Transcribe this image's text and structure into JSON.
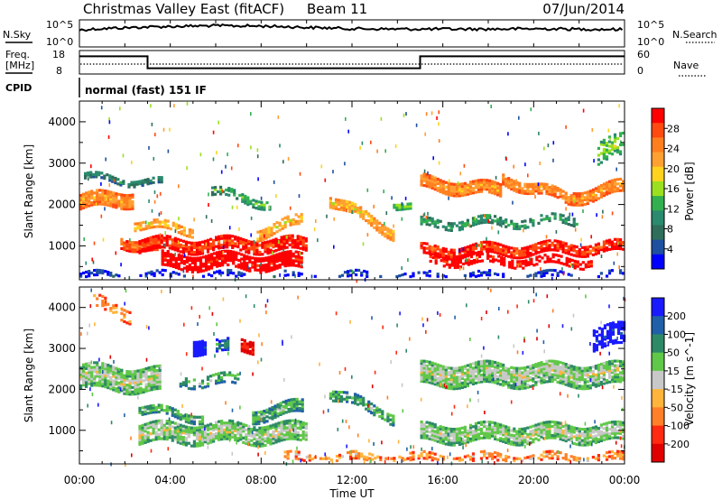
{
  "header": {
    "title": "Christmas Valley East (fitACF)",
    "beam": "Beam 11",
    "date": "07/Jun/2014"
  },
  "panels": {
    "nsky": {
      "label": "N.Sky",
      "ticks_left": [
        "10^5",
        "10^0"
      ],
      "ticks_right": [
        "10^5",
        "10^0"
      ],
      "right_label": "N.Search"
    },
    "freq": {
      "label_line1": "Freq.",
      "label_line2": "[MHz]",
      "ticks_left": [
        "18",
        "8"
      ],
      "ticks_right": [
        "60",
        "0"
      ],
      "right_label": "Nave"
    },
    "cpid": {
      "label": "CPID",
      "text": "normal (fast) 151 IF"
    }
  },
  "colorbars": {
    "power": {
      "label": "Power [dB]",
      "ticks": [
        "28",
        "24",
        "20",
        "16",
        "12",
        "8",
        "4"
      ],
      "colors": [
        "#ff0000",
        "#ff4a10",
        "#ff7f1f",
        "#ffa033",
        "#ffd21f",
        "#9be020",
        "#32b050",
        "#2a8a6e",
        "#2e6e5a",
        "#1f4fa0",
        "#0000ff"
      ]
    },
    "velocity": {
      "label": "Velocity [m s^-1]",
      "ticks": [
        "200",
        "100",
        "50",
        "15",
        "-15",
        "-50",
        "-100",
        "-200"
      ],
      "colors": [
        "#1a1aff",
        "#2060a8",
        "#2e8a66",
        "#60c848",
        "#c8c8c8",
        "#ffb43c",
        "#ff8028",
        "#ff2a10",
        "#e00000"
      ]
    }
  },
  "chart_data": [
    {
      "type": "line",
      "name": "nsky-panel",
      "series": [
        {
          "name": "N.Sky",
          "x_hours": [
            0,
            2,
            4,
            6,
            8,
            10,
            12,
            14,
            16,
            18,
            20,
            22,
            24
          ],
          "values": [
            3000,
            10000,
            20000,
            30000,
            25000,
            12000,
            6000,
            5000,
            5000,
            5000,
            6000,
            5000,
            4000
          ]
        }
      ]
    },
    {
      "type": "line",
      "name": "freq-panel",
      "series": [
        {
          "name": "Freq.",
          "x_hours": [
            0,
            3,
            3,
            15,
            15,
            24
          ],
          "values": [
            16,
            16,
            10,
            10,
            16,
            16
          ]
        }
      ],
      "ylim": [
        8,
        18
      ]
    },
    {
      "type": "heatmap",
      "name": "power-panel",
      "xlabel": "",
      "ylabel": "Slant Range [km]",
      "xlim_hours": [
        0,
        24
      ],
      "ylim_km": [
        180,
        4500
      ],
      "yticks": [
        1000,
        2000,
        3000,
        4000
      ],
      "bands": [
        {
          "t": [
            0.0,
            2.4
          ],
          "r0": 2050,
          "r1": 2150,
          "thick": 380,
          "level": 7,
          "density": 0.95
        },
        {
          "t": [
            0.2,
            3.6
          ],
          "r0": 2650,
          "r1": 2500,
          "thick": 160,
          "level": 3,
          "density": 0.75
        },
        {
          "t": [
            1.8,
            3.6
          ],
          "r0": 1100,
          "r1": 900,
          "thick": 260,
          "level": 8,
          "density": 0.9
        },
        {
          "t": [
            2.6,
            10.0
          ],
          "r0": 1000,
          "r1": 1000,
          "thick": 300,
          "level": 9,
          "density": 0.85
        },
        {
          "t": [
            3.6,
            9.8
          ],
          "r0": 600,
          "r1": 580,
          "thick": 340,
          "level": 10,
          "density": 0.8
        },
        {
          "t": [
            2.4,
            5.0
          ],
          "r0": 1500,
          "r1": 1350,
          "thick": 180,
          "level": 6,
          "density": 0.75
        },
        {
          "t": [
            5.8,
            8.4
          ],
          "r0": 2300,
          "r1": 2000,
          "thick": 220,
          "level": 4,
          "density": 0.7
        },
        {
          "t": [
            7.8,
            9.8
          ],
          "r0": 1300,
          "r1": 1600,
          "thick": 260,
          "level": 6,
          "density": 0.8
        },
        {
          "t": [
            11.0,
            13.8
          ],
          "r0": 2100,
          "r1": 1300,
          "thick": 260,
          "level": 6,
          "density": 0.9
        },
        {
          "t": [
            13.8,
            14.6
          ],
          "r0": 2000,
          "r1": 1900,
          "thick": 160,
          "level": 5,
          "density": 0.7
        },
        {
          "t": [
            15.0,
            18.6
          ],
          "r0": 2500,
          "r1": 2300,
          "thick": 300,
          "level": 7,
          "density": 0.95
        },
        {
          "t": [
            18.6,
            21.6
          ],
          "r0": 2600,
          "r1": 2100,
          "thick": 260,
          "level": 7,
          "density": 0.9
        },
        {
          "t": [
            21.6,
            24.0
          ],
          "r0": 2150,
          "r1": 2400,
          "thick": 300,
          "level": 7,
          "density": 0.9
        },
        {
          "t": [
            15.0,
            22.0
          ],
          "r0": 1500,
          "r1": 1600,
          "thick": 180,
          "level": 4,
          "density": 0.6
        },
        {
          "t": [
            15.0,
            24.0
          ],
          "r0": 850,
          "r1": 950,
          "thick": 260,
          "level": 9,
          "density": 0.85
        },
        {
          "t": [
            15.4,
            22.6
          ],
          "r0": 650,
          "r1": 600,
          "thick": 220,
          "level": 10,
          "density": 0.6
        },
        {
          "t": [
            22.8,
            24.0
          ],
          "r0": 3200,
          "r1": 3400,
          "thick": 500,
          "level": 5,
          "density": 0.6
        },
        {
          "t": [
            0.0,
            24.0
          ],
          "r0": 260,
          "r1": 260,
          "thick": 160,
          "level": 1,
          "density": 0.45
        }
      ]
    },
    {
      "type": "heatmap",
      "name": "velocity-panel",
      "xlabel": "Time UT",
      "ylabel": "Slant Range [km]",
      "xlim_hours": [
        0,
        24
      ],
      "ylim_km": [
        180,
        4500
      ],
      "xticks": [
        "00:00",
        "04:00",
        "08:00",
        "12:00",
        "16:00",
        "20:00",
        "00:00"
      ],
      "yticks": [
        1000,
        2000,
        3000,
        4000
      ],
      "bands": [
        {
          "t": [
            0.0,
            3.6
          ],
          "r0": 2300,
          "r1": 2200,
          "thick": 600,
          "level": 4,
          "density": 0.9
        },
        {
          "t": [
            2.6,
            10.0
          ],
          "r0": 900,
          "r1": 900,
          "thick": 450,
          "level": 4,
          "density": 0.85
        },
        {
          "t": [
            2.6,
            5.4
          ],
          "r0": 1500,
          "r1": 1300,
          "thick": 220,
          "level": 3,
          "density": 0.8
        },
        {
          "t": [
            7.6,
            9.8
          ],
          "r0": 1350,
          "r1": 1550,
          "thick": 300,
          "level": 3,
          "density": 0.85
        },
        {
          "t": [
            4.4,
            7.0
          ],
          "r0": 2200,
          "r1": 2200,
          "thick": 260,
          "level": 3,
          "density": 0.5
        },
        {
          "t": [
            5.0,
            5.6
          ],
          "r0": 3050,
          "r1": 3050,
          "thick": 350,
          "level": 0,
          "density": 0.95
        },
        {
          "t": [
            6.0,
            6.6
          ],
          "r0": 3000,
          "r1": 3000,
          "thick": 300,
          "level": 2,
          "density": 0.8
        },
        {
          "t": [
            7.1,
            7.6
          ],
          "r0": 3050,
          "r1": 3050,
          "thick": 300,
          "level": 7,
          "density": 0.9
        },
        {
          "t": [
            11.0,
            13.8
          ],
          "r0": 1900,
          "r1": 1300,
          "thick": 260,
          "level": 3,
          "density": 0.75
        },
        {
          "t": [
            15.0,
            24.0
          ],
          "r0": 2350,
          "r1": 2350,
          "thick": 550,
          "level": 4,
          "density": 0.9
        },
        {
          "t": [
            15.0,
            24.0
          ],
          "r0": 900,
          "r1": 900,
          "thick": 400,
          "level": 4,
          "density": 0.85
        },
        {
          "t": [
            22.6,
            24.0
          ],
          "r0": 3200,
          "r1": 3300,
          "thick": 500,
          "level": 0,
          "density": 0.7
        },
        {
          "t": [
            9.0,
            24.0
          ],
          "r0": 300,
          "r1": 300,
          "thick": 200,
          "level": 5,
          "density": 0.55
        },
        {
          "t": [
            0.6,
            2.2
          ],
          "r0": 4100,
          "r1": 3800,
          "thick": 300,
          "level": 5,
          "density": 0.4
        }
      ]
    }
  ]
}
